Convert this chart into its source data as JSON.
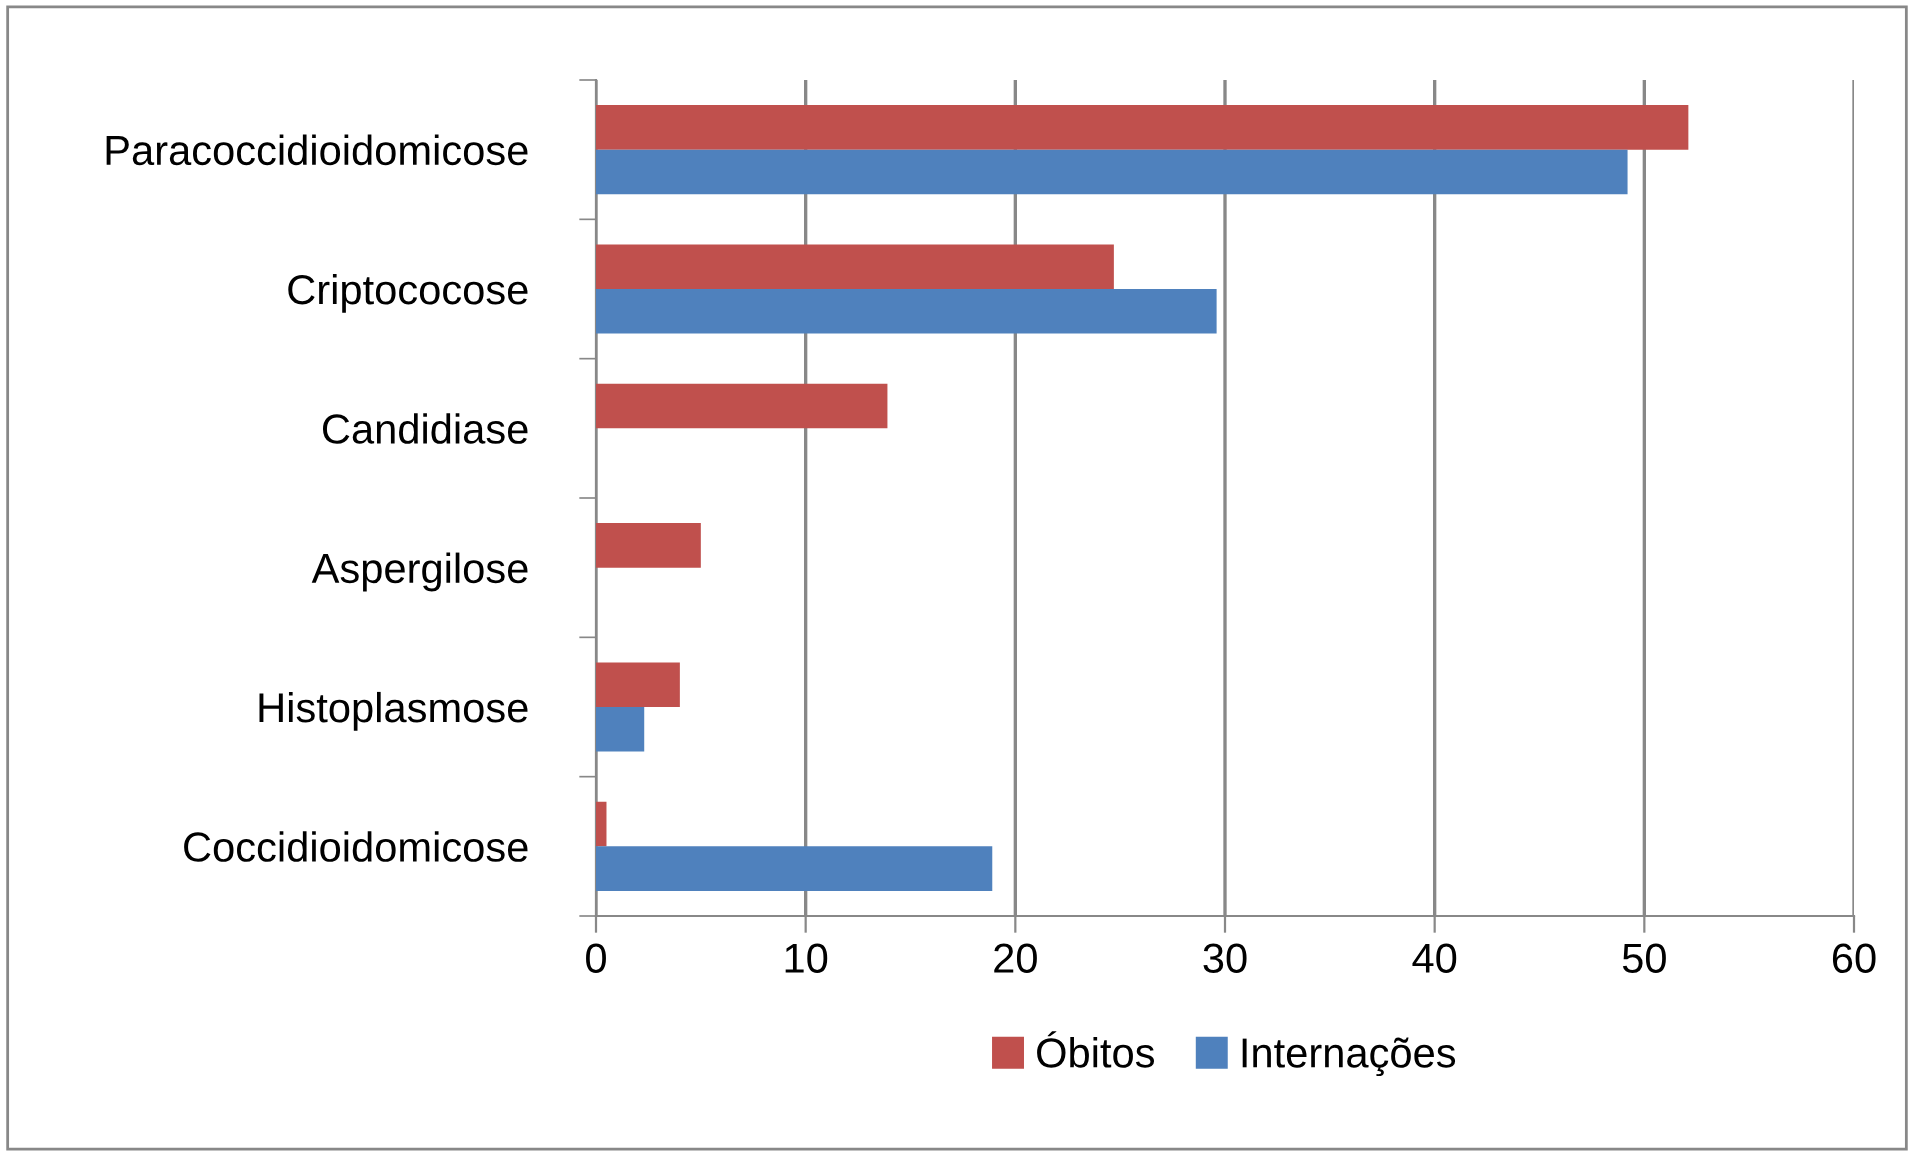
{
  "chart_data": {
    "type": "bar",
    "orientation": "horizontal",
    "categories": [
      "Paracoccidioidomicose",
      "Criptococose",
      "Candidiase",
      "Aspergilose",
      "Histoplasmose",
      "Coccidioidomicose"
    ],
    "series": [
      {
        "name": "Óbitos",
        "color": "#c0504d",
        "values": [
          52.1,
          24.7,
          13.9,
          5.0,
          4.0,
          0.5
        ]
      },
      {
        "name": "Internações",
        "color": "#4f81bd",
        "values": [
          49.2,
          29.6,
          null,
          null,
          2.3,
          18.9
        ]
      }
    ],
    "xlim": [
      0,
      60
    ],
    "xticks": [
      0,
      10,
      20,
      30,
      40,
      50,
      60
    ],
    "grid": "x",
    "legend": "bottom"
  }
}
